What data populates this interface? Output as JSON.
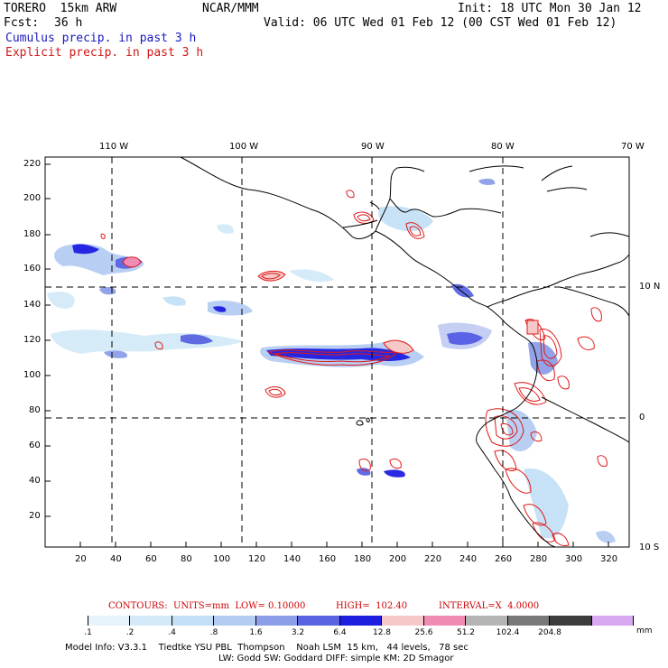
{
  "header": {
    "model_name": "TORERO  15km ARW",
    "org": "NCAR/MMM",
    "init": "Init: 18 UTC Mon 30 Jan 12",
    "fcst_label": "Fcst:",
    "fcst_value": "36 h",
    "valid": "Valid: 06 UTC Wed 01 Feb 12 (00 CST Wed 01 Feb 12)",
    "cumulus": "Cumulus precip. in past 3 h",
    "explicit": "Explicit precip. in past 3 h"
  },
  "map": {
    "top_axis": [
      "110 W",
      "100 W",
      "90 W",
      "80 W",
      "70 W"
    ],
    "right_axis": [
      "10 N",
      "0",
      "10 S"
    ],
    "left_ticks": [
      "220",
      "200",
      "180",
      "160",
      "140",
      "120",
      "100",
      "80",
      "60",
      "40",
      "20"
    ],
    "bottom_ticks": [
      "20",
      "40",
      "60",
      "80",
      "100",
      "120",
      "140",
      "160",
      "180",
      "200",
      "220",
      "240",
      "260",
      "280",
      "300",
      "320"
    ]
  },
  "contours_info": {
    "contours": "CONTOURS:  UNITS=mm  LOW= 0.10000",
    "high": "HIGH=  102.40",
    "interval": "INTERVAL=X  4.0000"
  },
  "colorbar": {
    "colors": [
      "#ffffff",
      "#e8f4fb",
      "#d4eaf8",
      "#c4e0f6",
      "#b4ccf2",
      "#8c9ee8",
      "#5a64e0",
      "#1e1ee0",
      "#f6c8c8",
      "#f08cb4",
      "#b4b4b4",
      "#787878",
      "#3c3c3c",
      "#d8a8f0"
    ],
    "labels": [
      ".1",
      ".2",
      ".4",
      ".8",
      "1.6",
      "3.2",
      "6.4",
      "12.8",
      "25.6",
      "51.2",
      "102.4",
      "204.8"
    ],
    "units": "mm"
  },
  "footer": {
    "line1": "Model Info: V3.3.1    Tiedtke YSU PBL  Thompson    Noah LSM  15 km,   44 levels,   78 sec",
    "line2": "LW: Godd SW: Goddard DIFF: simple KM: 2D Smagor"
  }
}
